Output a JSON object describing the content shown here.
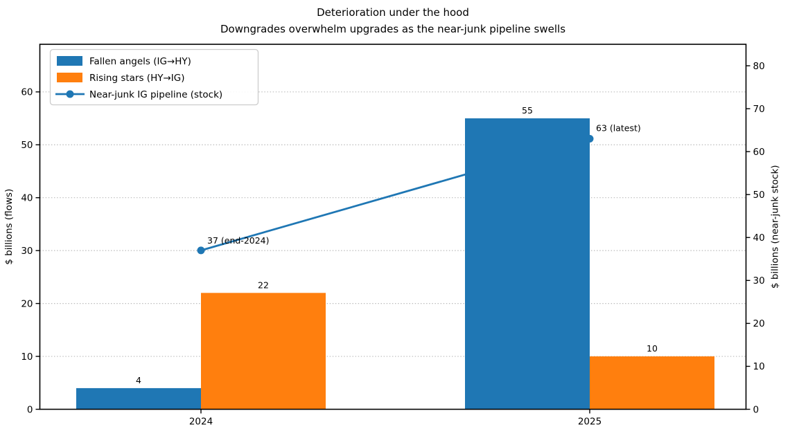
{
  "figure_title": {
    "line1": "Deterioration under the hood",
    "line2": "Downgrades overwhelm upgrades as the near-junk pipeline swells"
  },
  "chart_data": {
    "type": "bar",
    "categories": [
      "2024",
      "2025"
    ],
    "series": [
      {
        "name": "Fallen angels (IG→HY)",
        "kind": "bar",
        "axis": "left",
        "color": "#1f77b4",
        "values": [
          4,
          55
        ]
      },
      {
        "name": "Rising stars (HY→IG)",
        "kind": "bar",
        "axis": "left",
        "color": "#ff7f0e",
        "values": [
          22,
          10
        ]
      },
      {
        "name": "Near-junk IG pipeline (stock)",
        "kind": "line",
        "axis": "right",
        "color": "#1f77b4",
        "values": [
          37,
          63
        ],
        "point_annotations": [
          "37 (end-2024)",
          "63 (latest)"
        ]
      }
    ],
    "left_axis": {
      "label": "$ billions (flows)",
      "ticks": [
        0,
        10,
        20,
        30,
        40,
        50,
        60
      ],
      "range": [
        0,
        69
      ]
    },
    "right_axis": {
      "label": "$ billions (near-junk stock)",
      "ticks": [
        0,
        10,
        20,
        30,
        40,
        50,
        60,
        70,
        80
      ],
      "range": [
        0,
        85
      ]
    },
    "x_axis": {
      "tick_labels": [
        "2024",
        "2025"
      ]
    },
    "grid": {
      "axis": "left",
      "style": "dotted"
    },
    "legend": {
      "location": "upper left"
    }
  },
  "colors": {
    "bar_blue": "#1f77b4",
    "bar_orange": "#ff7f0e",
    "line_blue": "#1f77b4",
    "grid_line": "#bbbbbb",
    "axis_line": "#000000",
    "text": "#000000",
    "legend_border": "#cccccc",
    "legend_background": "#ffffff",
    "background": "#ffffff"
  }
}
